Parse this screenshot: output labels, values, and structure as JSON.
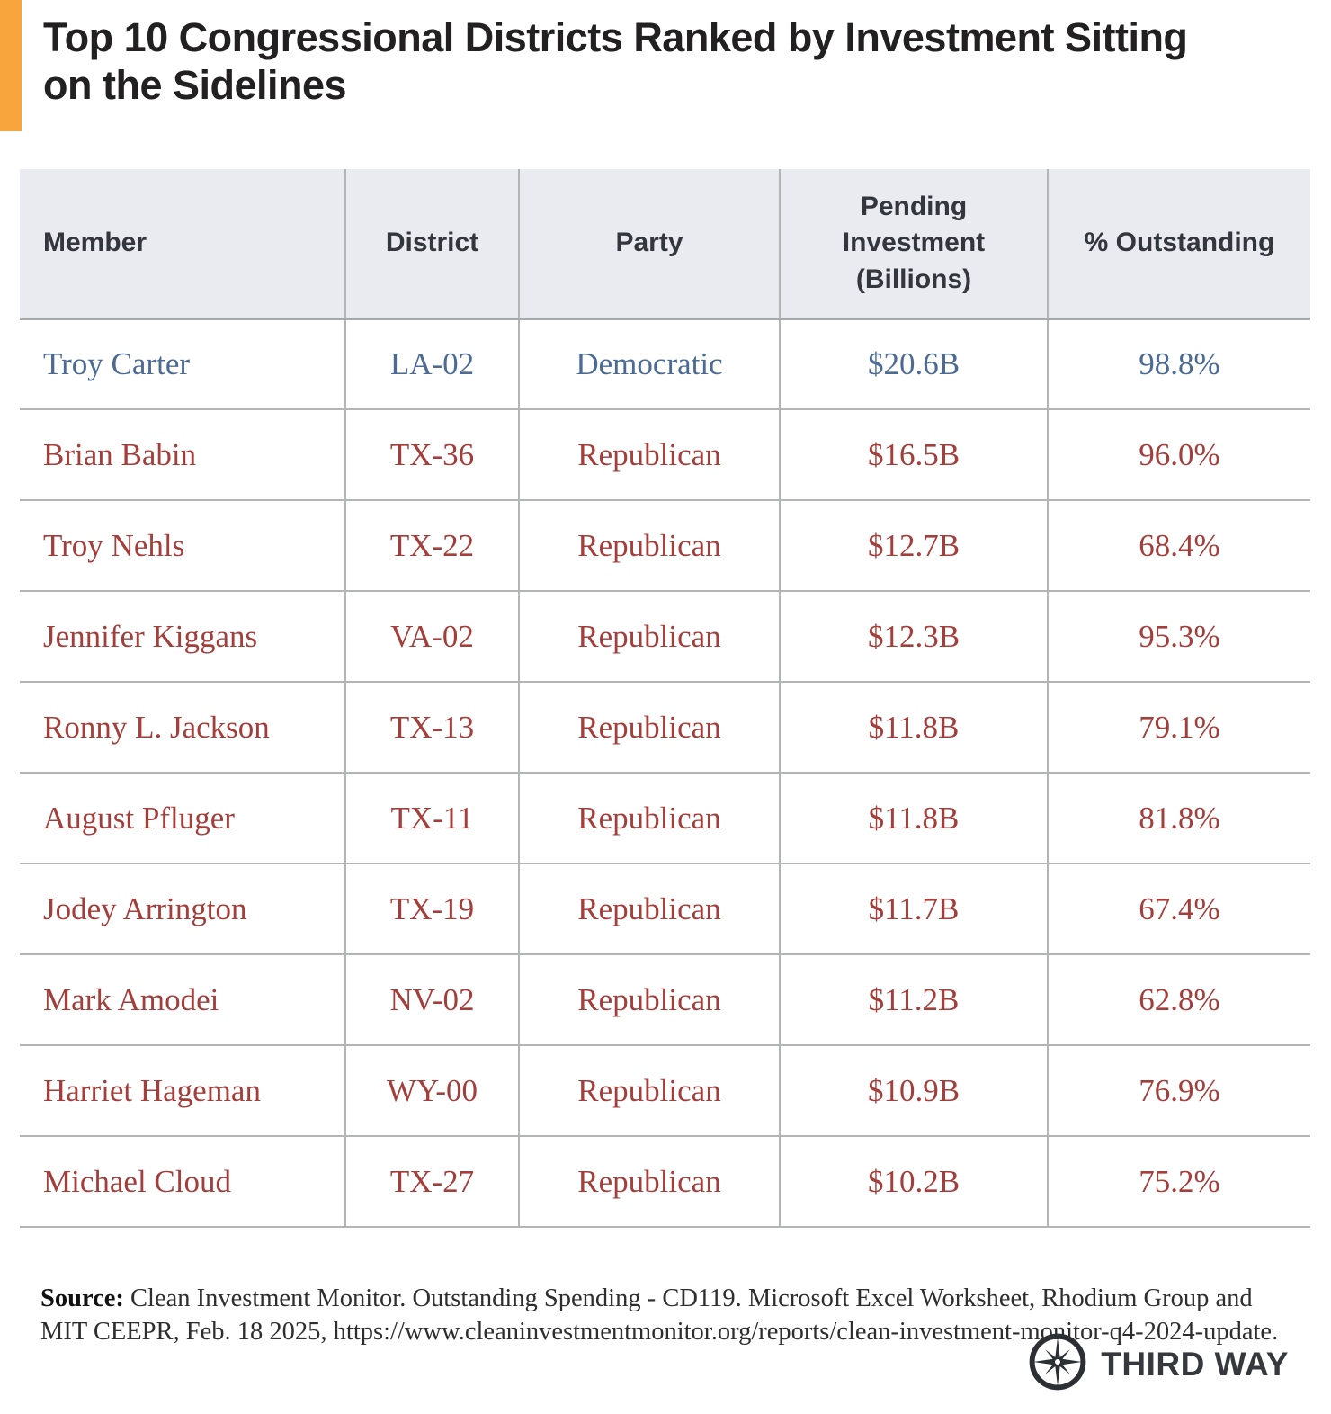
{
  "title": "Top 10 Congressional Districts Ranked by Investment Sitting on the Sidelines",
  "accent_color": "#f9a53e",
  "party_colors": {
    "Democratic": "#4c6b94",
    "Republican": "#a33e3b"
  },
  "table": {
    "headers": {
      "member": "Member",
      "district": "District",
      "party": "Party",
      "pending": "Pending Investment (Billions)",
      "outstanding": "% Outstanding"
    },
    "rows": [
      {
        "member": "Troy Carter",
        "district": "LA-02",
        "party": "Democratic",
        "pending": "$20.6B",
        "outstanding": "98.8%"
      },
      {
        "member": "Brian Babin",
        "district": "TX-36",
        "party": "Republican",
        "pending": "$16.5B",
        "outstanding": "96.0%"
      },
      {
        "member": "Troy Nehls",
        "district": "TX-22",
        "party": "Republican",
        "pending": "$12.7B",
        "outstanding": "68.4%"
      },
      {
        "member": "Jennifer Kiggans",
        "district": "VA-02",
        "party": "Republican",
        "pending": "$12.3B",
        "outstanding": "95.3%"
      },
      {
        "member": "Ronny L. Jackson",
        "district": "TX-13",
        "party": "Republican",
        "pending": "$11.8B",
        "outstanding": "79.1%"
      },
      {
        "member": "August Pfluger",
        "district": "TX-11",
        "party": "Republican",
        "pending": "$11.8B",
        "outstanding": "81.8%"
      },
      {
        "member": "Jodey Arrington",
        "district": "TX-19",
        "party": "Republican",
        "pending": "$11.7B",
        "outstanding": "67.4%"
      },
      {
        "member": "Mark Amodei",
        "district": "NV-02",
        "party": "Republican",
        "pending": "$11.2B",
        "outstanding": "62.8%"
      },
      {
        "member": "Harriet Hageman",
        "district": "WY-00",
        "party": "Republican",
        "pending": "$10.9B",
        "outstanding": "76.9%"
      },
      {
        "member": "Michael Cloud",
        "district": "TX-27",
        "party": "Republican",
        "pending": "$10.2B",
        "outstanding": "75.2%"
      }
    ]
  },
  "source": {
    "label": "Source:",
    "text": " Clean Investment Monitor. Outstanding Spending - CD119. Microsoft Excel Worksheet, Rhodium Group and MIT CEEPR, Feb. 18 2025, https://www.cleaninvestmentmonitor.org/reports/clean-investment-monitor-q4-2024-update."
  },
  "logo": {
    "text": "THIRD WAY"
  },
  "chart_data": {
    "type": "table",
    "title": "Top 10 Congressional Districts Ranked by Investment Sitting on the Sidelines",
    "columns": [
      "Member",
      "District",
      "Party",
      "Pending Investment (Billions)",
      "% Outstanding"
    ],
    "rows": [
      [
        "Troy Carter",
        "LA-02",
        "Democratic",
        "$20.6B",
        "98.8%"
      ],
      [
        "Brian Babin",
        "TX-36",
        "Republican",
        "$16.5B",
        "96.0%"
      ],
      [
        "Troy Nehls",
        "TX-22",
        "Republican",
        "$12.7B",
        "68.4%"
      ],
      [
        "Jennifer Kiggans",
        "VA-02",
        "Republican",
        "$12.3B",
        "95.3%"
      ],
      [
        "Ronny L. Jackson",
        "TX-13",
        "Republican",
        "$11.8B",
        "79.1%"
      ],
      [
        "August Pfluger",
        "TX-11",
        "Republican",
        "$11.8B",
        "81.8%"
      ],
      [
        "Jodey Arrington",
        "TX-19",
        "Republican",
        "$11.7B",
        "67.4%"
      ],
      [
        "Mark Amodei",
        "NV-02",
        "Republican",
        "$11.2B",
        "62.8%"
      ],
      [
        "Harriet Hageman",
        "WY-00",
        "Republican",
        "$10.9B",
        "76.9%"
      ],
      [
        "Michael Cloud",
        "TX-27",
        "Republican",
        "$10.2B",
        "75.2%"
      ]
    ],
    "pending_investment_billions": [
      20.6,
      16.5,
      12.7,
      12.3,
      11.8,
      11.8,
      11.7,
      11.2,
      10.9,
      10.2
    ],
    "pct_outstanding": [
      98.8,
      96.0,
      68.4,
      95.3,
      79.1,
      81.8,
      67.4,
      62.8,
      76.9,
      75.2
    ]
  }
}
